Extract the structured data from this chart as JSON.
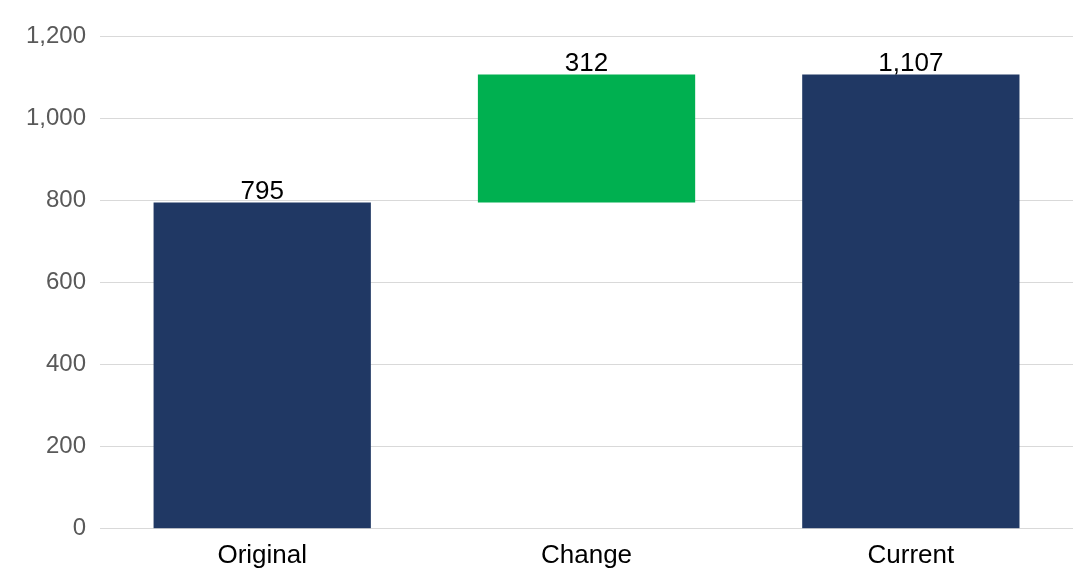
{
  "chart_data": {
    "type": "bar",
    "categories": [
      "Original",
      "Change",
      "Current"
    ],
    "values": [
      795,
      312,
      1107
    ],
    "base": [
      0,
      795,
      0
    ],
    "colors": [
      "#203864",
      "#00b050",
      "#203864"
    ],
    "value_labels": [
      "795",
      "312",
      "1,107"
    ],
    "ylim": [
      0,
      1200
    ],
    "yticks": [
      0,
      {
        "value": 200,
        "label": "200"
      },
      {
        "value": 400,
        "label": "400"
      },
      {
        "value": 600,
        "label": "600"
      },
      {
        "value": 800,
        "label": "800"
      },
      {
        "value": 1000,
        "label": "1,000"
      },
      {
        "value": 1200,
        "label": "1,200"
      }
    ],
    "grid": "y",
    "legend": false
  }
}
